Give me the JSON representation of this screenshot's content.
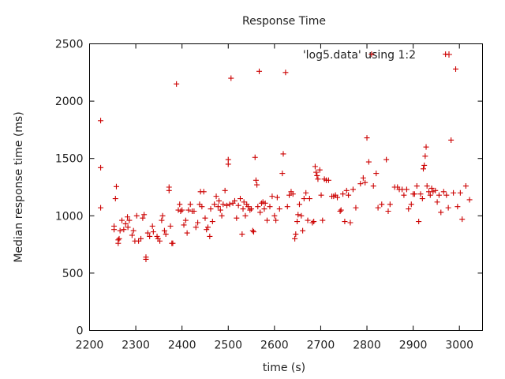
{
  "chart_data": {
    "type": "scatter",
    "title": "Response Time",
    "xlabel": "time (s)",
    "ylabel": "Median response time (ms)",
    "xlim": [
      2200,
      3050
    ],
    "ylim": [
      0,
      2500
    ],
    "xticks": [
      2200,
      2300,
      2400,
      2500,
      2600,
      2700,
      2800,
      2900,
      3000
    ],
    "yticks": [
      0,
      500,
      1000,
      1500,
      2000,
      2500
    ],
    "grid": false,
    "legend_position": "top-right",
    "series": [
      {
        "name": "'log5.data' using 1:2",
        "color": "#cc0000",
        "marker": "plus",
        "points": [
          [
            2224,
            1830
          ],
          [
            2224,
            1420
          ],
          [
            2224,
            1070
          ],
          [
            2253,
            880
          ],
          [
            2253,
            910
          ],
          [
            2256,
            1150
          ],
          [
            2258,
            1255
          ],
          [
            2262,
            790
          ],
          [
            2262,
            760
          ],
          [
            2264,
            800
          ],
          [
            2266,
            870
          ],
          [
            2270,
            960
          ],
          [
            2274,
            880
          ],
          [
            2278,
            930
          ],
          [
            2282,
            990
          ],
          [
            2283,
            900
          ],
          [
            2286,
            960
          ],
          [
            2292,
            830
          ],
          [
            2295,
            870
          ],
          [
            2298,
            780
          ],
          [
            2302,
            1000
          ],
          [
            2306,
            780
          ],
          [
            2311,
            800
          ],
          [
            2315,
            980
          ],
          [
            2318,
            1010
          ],
          [
            2322,
            640
          ],
          [
            2322,
            620
          ],
          [
            2326,
            850
          ],
          [
            2330,
            820
          ],
          [
            2336,
            910
          ],
          [
            2338,
            860
          ],
          [
            2346,
            820
          ],
          [
            2348,
            800
          ],
          [
            2352,
            780
          ],
          [
            2356,
            960
          ],
          [
            2358,
            1000
          ],
          [
            2362,
            870
          ],
          [
            2365,
            840
          ],
          [
            2372,
            1220
          ],
          [
            2372,
            1250
          ],
          [
            2375,
            910
          ],
          [
            2378,
            760
          ],
          [
            2380,
            760
          ],
          [
            2388,
            2150
          ],
          [
            2392,
            1050
          ],
          [
            2395,
            1100
          ],
          [
            2397,
            1040
          ],
          [
            2400,
            1050
          ],
          [
            2404,
            920
          ],
          [
            2408,
            960
          ],
          [
            2411,
            850
          ],
          [
            2414,
            1050
          ],
          [
            2418,
            1100
          ],
          [
            2422,
            1040
          ],
          [
            2426,
            1040
          ],
          [
            2430,
            900
          ],
          [
            2434,
            940
          ],
          [
            2438,
            1100
          ],
          [
            2440,
            1210
          ],
          [
            2443,
            1080
          ],
          [
            2447,
            1210
          ],
          [
            2450,
            980
          ],
          [
            2453,
            880
          ],
          [
            2456,
            900
          ],
          [
            2460,
            820
          ],
          [
            2462,
            1060
          ],
          [
            2466,
            950
          ],
          [
            2470,
            1100
          ],
          [
            2474,
            1170
          ],
          [
            2478,
            1080
          ],
          [
            2480,
            1130
          ],
          [
            2483,
            1050
          ],
          [
            2486,
            1000
          ],
          [
            2489,
            1100
          ],
          [
            2493,
            1220
          ],
          [
            2497,
            1090
          ],
          [
            2500,
            1450
          ],
          [
            2500,
            1490
          ],
          [
            2503,
            1100
          ],
          [
            2506,
            2200
          ],
          [
            2510,
            1110
          ],
          [
            2514,
            1130
          ],
          [
            2518,
            980
          ],
          [
            2522,
            1090
          ],
          [
            2526,
            1150
          ],
          [
            2530,
            840
          ],
          [
            2532,
            1060
          ],
          [
            2534,
            1120
          ],
          [
            2537,
            1000
          ],
          [
            2540,
            1100
          ],
          [
            2543,
            1080
          ],
          [
            2547,
            1050
          ],
          [
            2550,
            1060
          ],
          [
            2553,
            870
          ],
          [
            2555,
            860
          ],
          [
            2558,
            1510
          ],
          [
            2560,
            1310
          ],
          [
            2562,
            1270
          ],
          [
            2564,
            1080
          ],
          [
            2567,
            2260
          ],
          [
            2569,
            1030
          ],
          [
            2572,
            1110
          ],
          [
            2575,
            1120
          ],
          [
            2578,
            1060
          ],
          [
            2580,
            1110
          ],
          [
            2584,
            960
          ],
          [
            2590,
            1080
          ],
          [
            2595,
            1170
          ],
          [
            2600,
            1000
          ],
          [
            2603,
            960
          ],
          [
            2606,
            1160
          ],
          [
            2611,
            1060
          ],
          [
            2617,
            1370
          ],
          [
            2619,
            1540
          ],
          [
            2624,
            2250
          ],
          [
            2628,
            1080
          ],
          [
            2632,
            1180
          ],
          [
            2636,
            1210
          ],
          [
            2640,
            1190
          ],
          [
            2644,
            800
          ],
          [
            2646,
            840
          ],
          [
            2649,
            950
          ],
          [
            2651,
            1010
          ],
          [
            2654,
            1100
          ],
          [
            2658,
            1000
          ],
          [
            2661,
            870
          ],
          [
            2664,
            1150
          ],
          [
            2668,
            1200
          ],
          [
            2672,
            960
          ],
          [
            2676,
            1150
          ],
          [
            2682,
            940
          ],
          [
            2685,
            950
          ],
          [
            2688,
            1430
          ],
          [
            2690,
            1380
          ],
          [
            2692,
            1350
          ],
          [
            2694,
            1320
          ],
          [
            2698,
            1400
          ],
          [
            2701,
            1180
          ],
          [
            2704,
            960
          ],
          [
            2708,
            1320
          ],
          [
            2712,
            1310
          ],
          [
            2717,
            1310
          ],
          [
            2724,
            1170
          ],
          [
            2728,
            1170
          ],
          [
            2732,
            1180
          ],
          [
            2736,
            1160
          ],
          [
            2742,
            1040
          ],
          [
            2744,
            1050
          ],
          [
            2748,
            1190
          ],
          [
            2752,
            950
          ],
          [
            2756,
            1220
          ],
          [
            2760,
            1180
          ],
          [
            2764,
            940
          ],
          [
            2770,
            1230
          ],
          [
            2776,
            1070
          ],
          [
            2786,
            1280
          ],
          [
            2792,
            1330
          ],
          [
            2796,
            1290
          ],
          [
            2800,
            1680
          ],
          [
            2804,
            1470
          ],
          [
            2810,
            2410
          ],
          [
            2814,
            1260
          ],
          [
            2820,
            1370
          ],
          [
            2824,
            1070
          ],
          [
            2832,
            1100
          ],
          [
            2842,
            1490
          ],
          [
            2846,
            1040
          ],
          [
            2850,
            1100
          ],
          [
            2860,
            1250
          ],
          [
            2866,
            1250
          ],
          [
            2870,
            1230
          ],
          [
            2876,
            1230
          ],
          [
            2880,
            1180
          ],
          [
            2886,
            1230
          ],
          [
            2890,
            1060
          ],
          [
            2896,
            1100
          ],
          [
            2900,
            1190
          ],
          [
            2903,
            1190
          ],
          [
            2908,
            1260
          ],
          [
            2912,
            950
          ],
          [
            2916,
            1190
          ],
          [
            2920,
            1150
          ],
          [
            2922,
            1410
          ],
          [
            2924,
            1440
          ],
          [
            2926,
            1520
          ],
          [
            2928,
            1600
          ],
          [
            2930,
            1260
          ],
          [
            2934,
            1210
          ],
          [
            2937,
            1180
          ],
          [
            2940,
            1240
          ],
          [
            2943,
            1210
          ],
          [
            2948,
            1220
          ],
          [
            2952,
            1120
          ],
          [
            2956,
            1180
          ],
          [
            2960,
            1030
          ],
          [
            2966,
            1210
          ],
          [
            2970,
            2410
          ],
          [
            2972,
            1180
          ],
          [
            2976,
            1070
          ],
          [
            2982,
            1660
          ],
          [
            2987,
            1200
          ],
          [
            2992,
            2280
          ],
          [
            2996,
            1080
          ],
          [
            3002,
            1200
          ],
          [
            3006,
            970
          ],
          [
            3014,
            1260
          ],
          [
            3022,
            1140
          ]
        ]
      }
    ]
  }
}
